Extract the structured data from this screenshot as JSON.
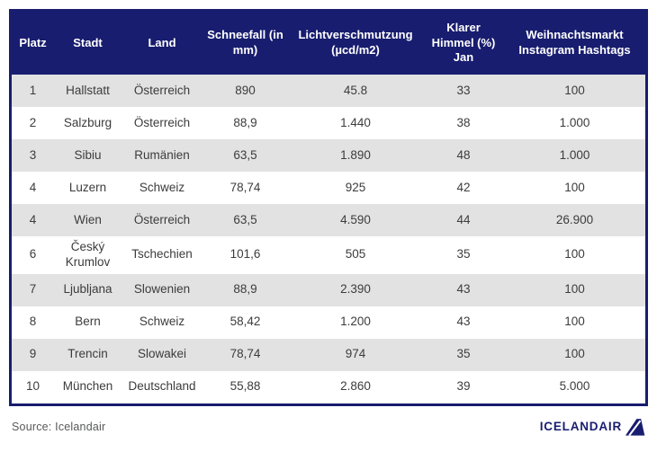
{
  "chart_data": {
    "type": "table",
    "title": "",
    "columns": [
      "Platz",
      "Stadt",
      "Land",
      "Schneefall (in mm)",
      "Lichtverschmutzung (µcd/m2)",
      "Klarer Himmel (%) Jan",
      "Weihnachtsmarkt Instagram Hashtags"
    ],
    "rows": [
      [
        "1",
        "Hallstatt",
        "Österreich",
        "890",
        "45.8",
        "33",
        "100"
      ],
      [
        "2",
        "Salzburg",
        "Österreich",
        "88,9",
        "1.440",
        "38",
        "1.000"
      ],
      [
        "3",
        "Sibiu",
        "Rumänien",
        "63,5",
        "1.890",
        "48",
        "1.000"
      ],
      [
        "4",
        "Luzern",
        "Schweiz",
        "78,74",
        "925",
        "42",
        "100"
      ],
      [
        "4",
        "Wien",
        "Österreich",
        "63,5",
        "4.590",
        "44",
        "26.900"
      ],
      [
        "6",
        "Český Krumlov",
        "Tschechien",
        "101,6",
        "505",
        "35",
        "100"
      ],
      [
        "7",
        "Ljubljana",
        "Slowenien",
        "88,9",
        "2.390",
        "43",
        "100"
      ],
      [
        "8",
        "Bern",
        "Schweiz",
        "58,42",
        "1.200",
        "43",
        "100"
      ],
      [
        "9",
        "Trencin",
        "Slowakei",
        "78,74",
        "974",
        "35",
        "100"
      ],
      [
        "10",
        "München",
        "Deutschland",
        "55,88",
        "2.860",
        "39",
        "5.000"
      ]
    ]
  },
  "footer": {
    "source": "Source: Icelandair",
    "logo_text": "ICELANDAIR"
  },
  "colors": {
    "header_bg": "#181d6f",
    "border": "#181d6f",
    "row_alt_bg": "#e2e2e2",
    "row_bg": "#ffffff",
    "cell_text": "#3c3c3c",
    "header_text": "#ffffff",
    "source_text": "#58595b",
    "brand_navy": "#181d6f"
  },
  "icons": {
    "tailfin": "icelandair-tailfin-icon"
  }
}
